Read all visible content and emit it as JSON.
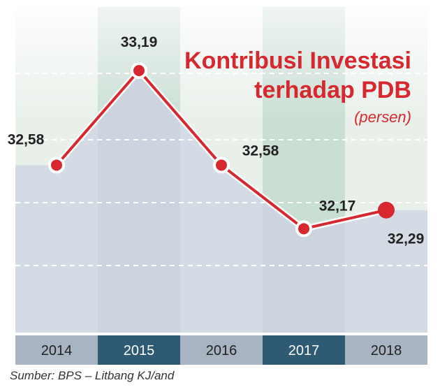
{
  "chart_data": {
    "type": "line",
    "title": "Kontribusi Investasi terhadap PDB",
    "title_lines": [
      "Kontribusi Investasi",
      "terhadap PDB"
    ],
    "subtitle": "(persen)",
    "categories": [
      "2014",
      "2015",
      "2016",
      "2017",
      "2018"
    ],
    "values": [
      32.58,
      33.19,
      32.58,
      32.17,
      32.29
    ],
    "value_labels": [
      "32,58",
      "33,19",
      "32,58",
      "32,17",
      "32,29"
    ],
    "ylim": [
      31.5,
      33.6
    ],
    "grid": true,
    "line_color": "#d7282f",
    "colors": {
      "column_light": "#e9f0ea",
      "column_dark": "#d3e6d8",
      "area_fill": "#d5dbe5",
      "axis_band_light": "#a9b4c3",
      "axis_band_dark": "#2e5a73"
    }
  },
  "source": "Sumber: BPS – Litbang KJ/and"
}
